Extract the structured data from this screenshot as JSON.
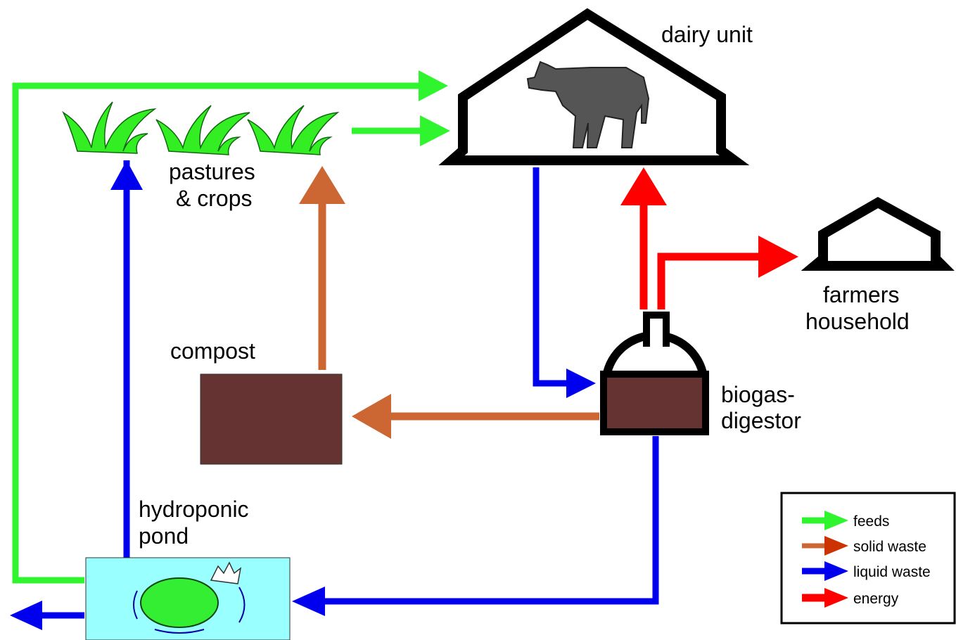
{
  "nodes": [
    {
      "label": [
        "dairy unit"
      ]
    },
    {
      "label": [
        "pastures",
        "& crops"
      ]
    },
    {
      "label": [
        "farmers",
        "household"
      ]
    },
    {
      "label": [
        "compost"
      ]
    },
    {
      "label": [
        "biogas-",
        "digestor"
      ]
    },
    {
      "label": [
        "hydroponic",
        "pond"
      ]
    }
  ],
  "legend": [
    "feeds",
    "solid waste",
    "liquid waste",
    "energy"
  ]
}
